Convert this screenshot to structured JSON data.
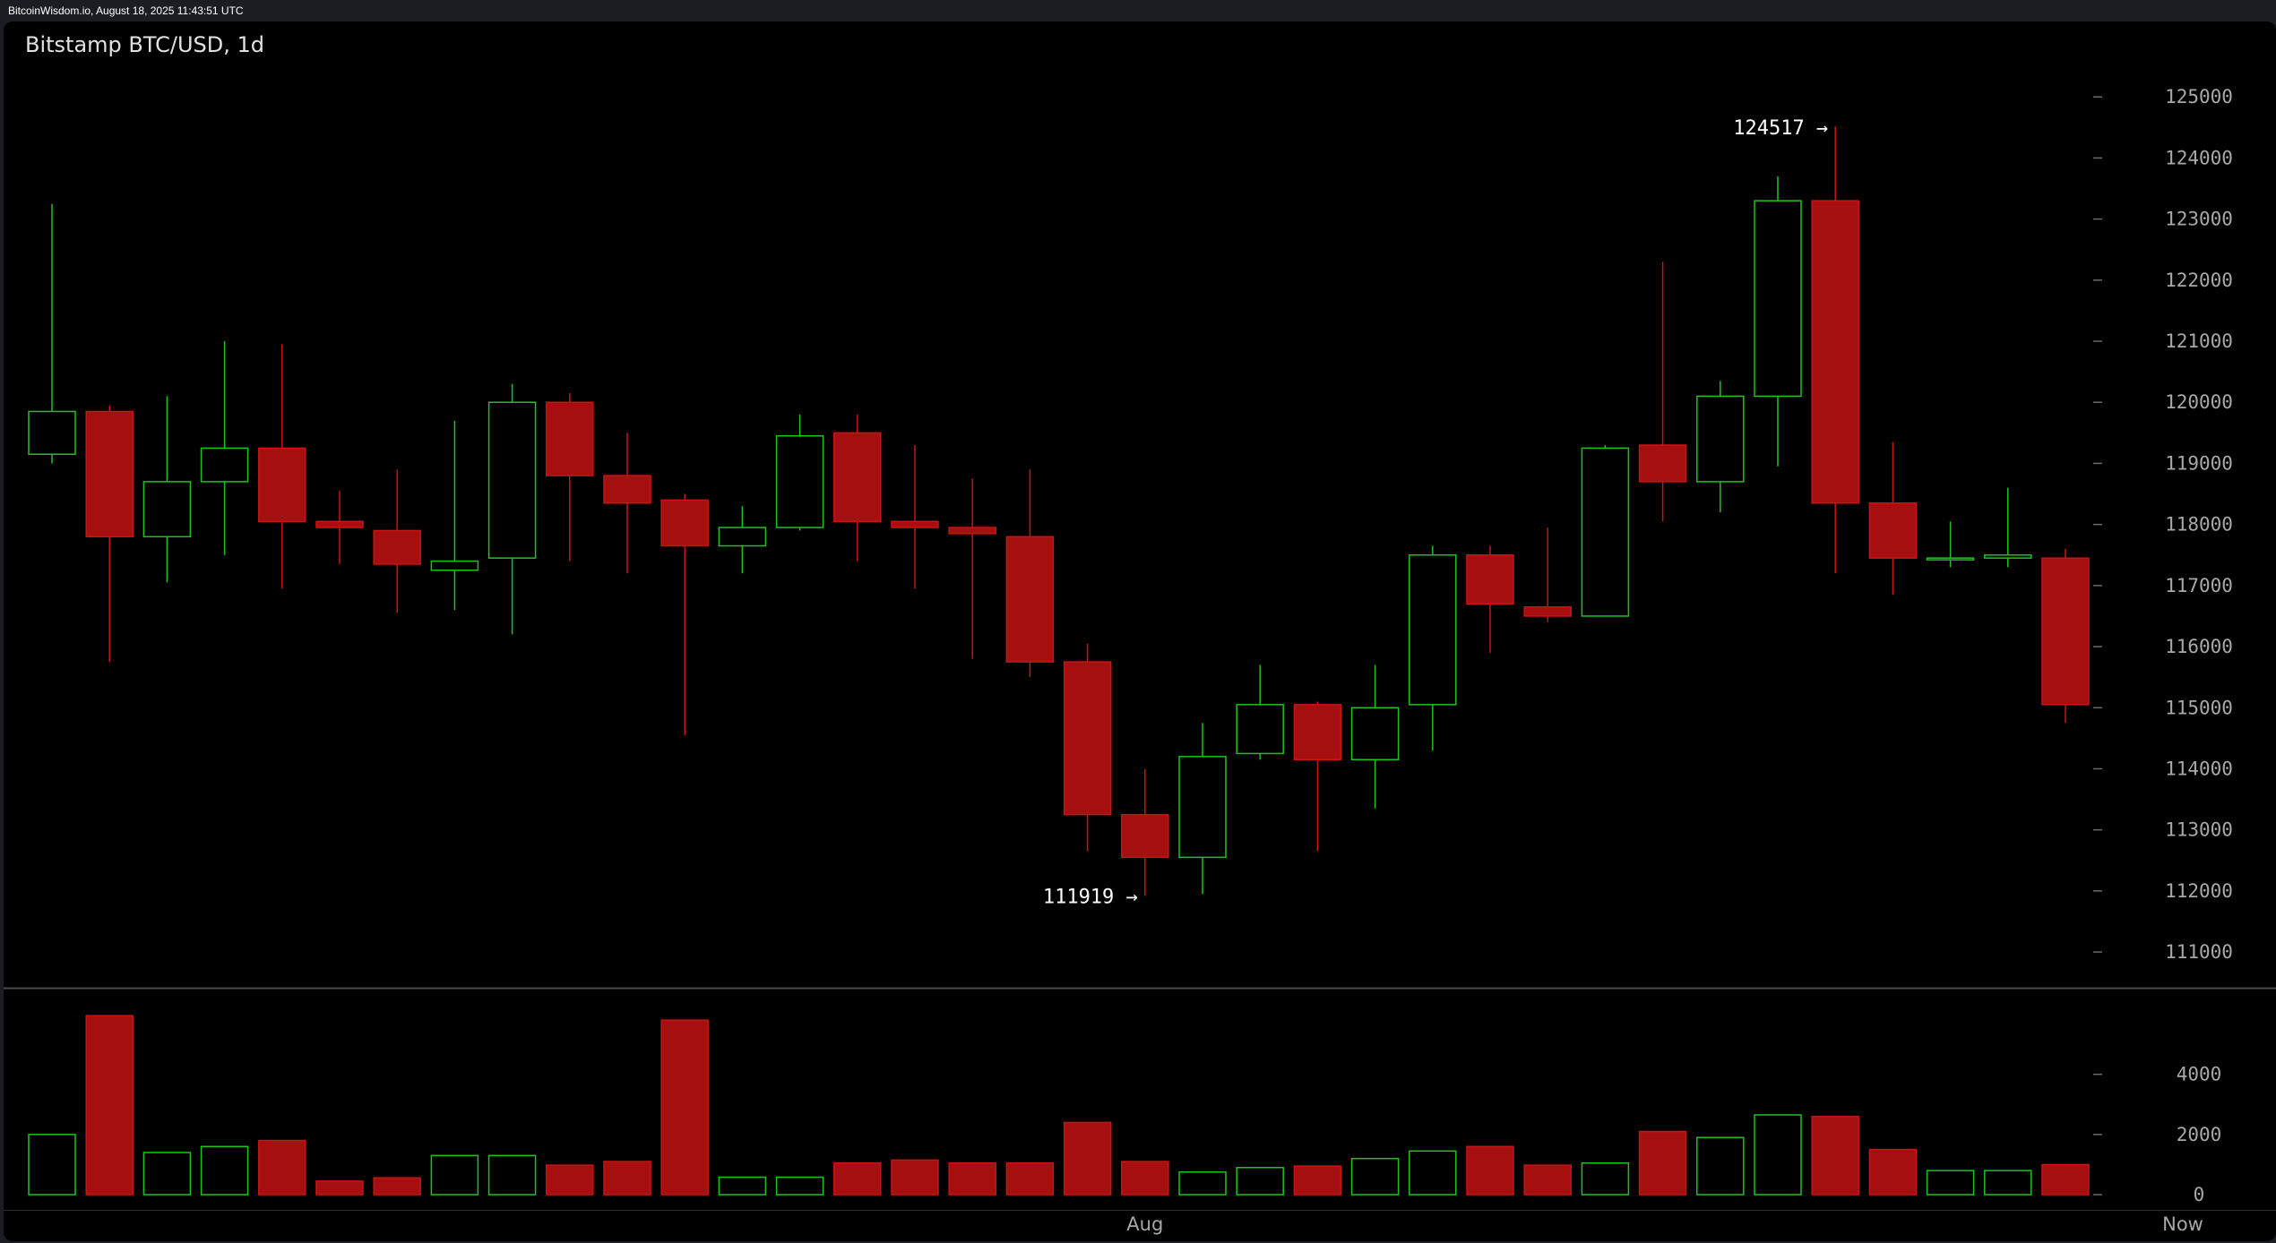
{
  "header": {
    "text": "BitcoinWisdom.io, August 18, 2025 11:43:51 UTC"
  },
  "chart": {
    "title": "Bitstamp BTC/USD, 1d"
  },
  "colors": {
    "background": "#000000",
    "up": "#1ec21e",
    "down": "#a50f0f",
    "down_outline": "#c81414",
    "axis_text": "#a8a8a8",
    "annotation": "#ffffff"
  },
  "chart_data": {
    "type": "candlestick",
    "title": "Bitstamp BTC/USD, 1d",
    "price_axis": {
      "ticks": [
        111000,
        112000,
        113000,
        114000,
        115000,
        116000,
        117000,
        118000,
        119000,
        120000,
        121000,
        122000,
        123000,
        124000,
        125000
      ],
      "tick_labels": [
        "111000",
        "112000",
        "113000",
        "114000",
        "115000",
        "116000",
        "117000",
        "118000",
        "119000",
        "120000",
        "121000",
        "122000",
        "123000",
        "124000",
        "125000"
      ],
      "range": [
        110400,
        126000
      ]
    },
    "volume_axis": {
      "ticks": [
        0,
        2000,
        4000
      ],
      "tick_labels": [
        "0",
        "2000",
        "4000"
      ],
      "range": [
        0,
        6400
      ]
    },
    "x_labels": [
      {
        "label": "Aug",
        "index": 19
      },
      {
        "label": "Now",
        "index": 37
      }
    ],
    "annotations": [
      {
        "text": "124517 →",
        "index": 31,
        "price": 124517
      },
      {
        "text": "111919 →",
        "index": 19,
        "price": 111919
      }
    ],
    "candles": [
      {
        "open": 119150,
        "high": 123250,
        "low": 119000,
        "close": 119850,
        "volume": 2000
      },
      {
        "open": 119850,
        "high": 119950,
        "low": 115750,
        "close": 117800,
        "volume": 5950
      },
      {
        "open": 117800,
        "high": 120100,
        "low": 117050,
        "close": 118700,
        "volume": 1400
      },
      {
        "open": 118700,
        "high": 121000,
        "low": 117500,
        "close": 119250,
        "volume": 1600
      },
      {
        "open": 119250,
        "high": 120950,
        "low": 116950,
        "close": 118050,
        "volume": 1800
      },
      {
        "open": 118050,
        "high": 118550,
        "low": 117350,
        "close": 117950,
        "volume": 450
      },
      {
        "open": 117900,
        "high": 118900,
        "low": 116550,
        "close": 117350,
        "volume": 560
      },
      {
        "open": 117250,
        "high": 119700,
        "low": 116600,
        "close": 117400,
        "volume": 1300
      },
      {
        "open": 117450,
        "high": 120300,
        "low": 116200,
        "close": 120000,
        "volume": 1300
      },
      {
        "open": 120000,
        "high": 120150,
        "low": 117400,
        "close": 118800,
        "volume": 980
      },
      {
        "open": 118800,
        "high": 119500,
        "low": 117200,
        "close": 118350,
        "volume": 1100
      },
      {
        "open": 118400,
        "high": 118500,
        "low": 114550,
        "close": 117650,
        "volume": 5800
      },
      {
        "open": 117650,
        "high": 118300,
        "low": 117200,
        "close": 117950,
        "volume": 580
      },
      {
        "open": 117950,
        "high": 119800,
        "low": 117900,
        "close": 119450,
        "volume": 580
      },
      {
        "open": 119500,
        "high": 119800,
        "low": 117400,
        "close": 118050,
        "volume": 1050
      },
      {
        "open": 118050,
        "high": 119300,
        "low": 116950,
        "close": 117950,
        "volume": 1150
      },
      {
        "open": 117950,
        "high": 118750,
        "low": 115800,
        "close": 117850,
        "volume": 1050
      },
      {
        "open": 117800,
        "high": 118900,
        "low": 115500,
        "close": 115750,
        "volume": 1050
      },
      {
        "open": 115750,
        "high": 116050,
        "low": 112650,
        "close": 113250,
        "volume": 2400
      },
      {
        "open": 113250,
        "high": 114000,
        "low": 111919,
        "close": 112550,
        "volume": 1100
      },
      {
        "open": 112550,
        "high": 114750,
        "low": 111950,
        "close": 114200,
        "volume": 750
      },
      {
        "open": 114250,
        "high": 115700,
        "low": 114150,
        "close": 115050,
        "volume": 900
      },
      {
        "open": 115050,
        "high": 115100,
        "low": 112650,
        "close": 114150,
        "volume": 950
      },
      {
        "open": 114150,
        "high": 115700,
        "low": 113350,
        "close": 115000,
        "volume": 1200
      },
      {
        "open": 115050,
        "high": 117650,
        "low": 114300,
        "close": 117500,
        "volume": 1450
      },
      {
        "open": 117500,
        "high": 117650,
        "low": 115900,
        "close": 116700,
        "volume": 1600
      },
      {
        "open": 116650,
        "high": 117950,
        "low": 116400,
        "close": 116500,
        "volume": 980
      },
      {
        "open": 116500,
        "high": 119300,
        "low": 116500,
        "close": 119250,
        "volume": 1050
      },
      {
        "open": 119300,
        "high": 122300,
        "low": 118050,
        "close": 118700,
        "volume": 2100
      },
      {
        "open": 118700,
        "high": 120350,
        "low": 118200,
        "close": 120100,
        "volume": 1900
      },
      {
        "open": 120100,
        "high": 123700,
        "low": 118950,
        "close": 123300,
        "volume": 2650
      },
      {
        "open": 123300,
        "high": 124517,
        "low": 117200,
        "close": 118350,
        "volume": 2600
      },
      {
        "open": 118350,
        "high": 119350,
        "low": 116850,
        "close": 117450,
        "volume": 1500
      },
      {
        "open": 117450,
        "high": 118050,
        "low": 117300,
        "close": 117450,
        "volume": 800
      },
      {
        "open": 117450,
        "high": 118600,
        "low": 117300,
        "close": 117500,
        "volume": 800
      },
      {
        "open": 117450,
        "high": 117600,
        "low": 114750,
        "close": 115050,
        "volume": 1000
      }
    ]
  }
}
